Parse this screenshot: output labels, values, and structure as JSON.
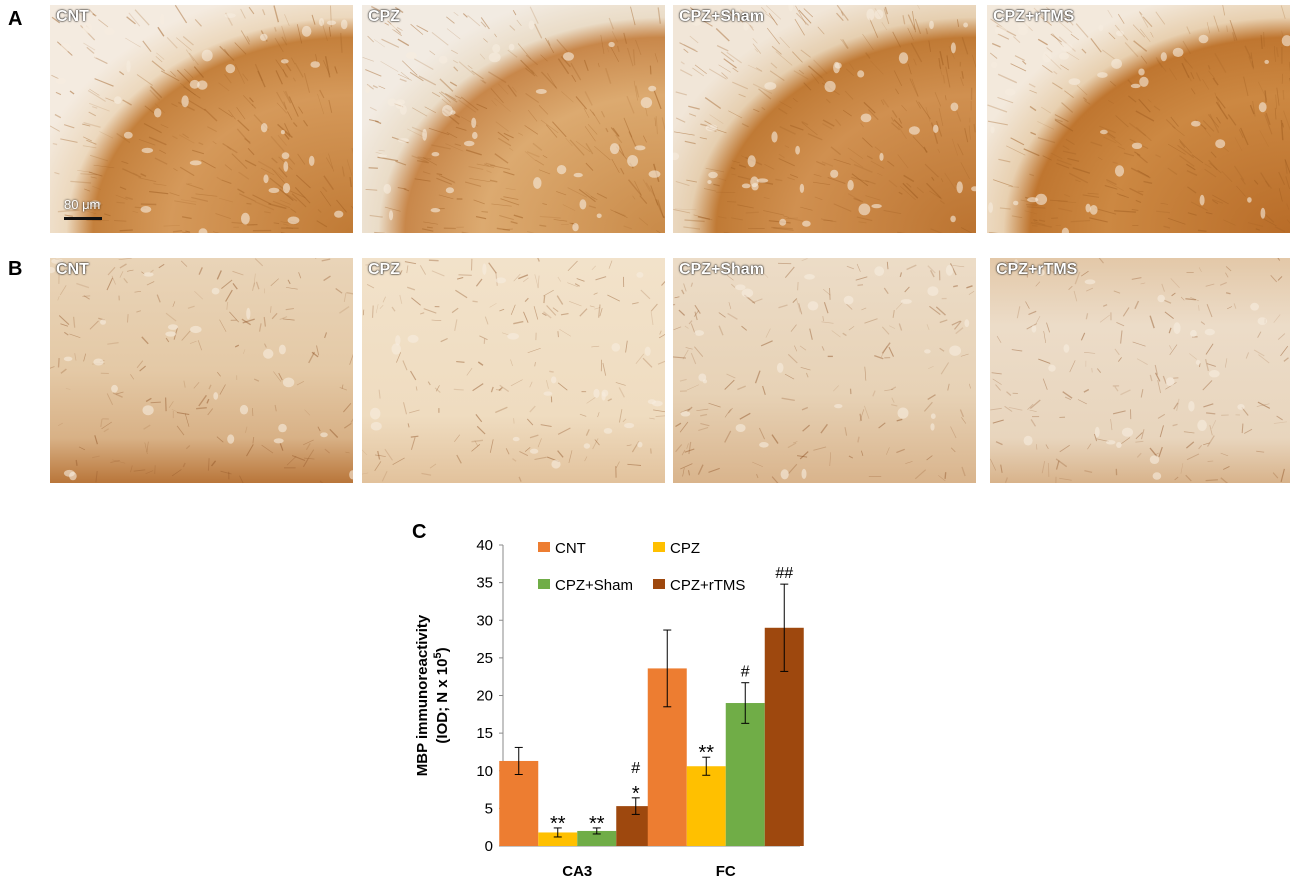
{
  "panels": {
    "a_letter": "A",
    "b_letter": "B",
    "c_letter": "C"
  },
  "row_a": [
    {
      "label": "CNT"
    },
    {
      "label": "CPZ"
    },
    {
      "label": "CPZ+Sham"
    },
    {
      "label": "CPZ+rTMS"
    }
  ],
  "row_b": [
    {
      "label": "CNT"
    },
    {
      "label": "CPZ"
    },
    {
      "label": "CPZ+Sham"
    },
    {
      "label": "CPZ+rTMS"
    }
  ],
  "scale_bar": "80 μm",
  "colors": {
    "stain_dark": "#b8722e",
    "stain_light": "#f1dfc6",
    "CNT": "#ed7d31",
    "CPZ": "#ffc000",
    "CPZ+Sham": "#70ad47",
    "CPZ+rTMS": "#9e480e"
  },
  "chart_data": {
    "type": "bar",
    "ylabel_line1": "MBP immunoreactivity",
    "ylabel_line2_prefix": "(IOD; N x 10",
    "ylabel_line2_sup": "5",
    "ylabel_line2_suffix": ")",
    "ylim": [
      0,
      40
    ],
    "yticks": [
      0,
      5,
      10,
      15,
      20,
      25,
      30,
      35,
      40
    ],
    "categories": [
      "CA3",
      "FC"
    ],
    "legend_placement": "top",
    "series": [
      {
        "name": "CNT",
        "color": "#ed7d31",
        "values": [
          11.3,
          23.6
        ],
        "errors": [
          1.8,
          5.1
        ],
        "annotations": [
          "",
          ""
        ]
      },
      {
        "name": "CPZ",
        "color": "#ffc000",
        "values": [
          1.8,
          10.6
        ],
        "errors": [
          0.6,
          1.2
        ],
        "annotations": [
          "**",
          "**"
        ]
      },
      {
        "name": "CPZ+Sham",
        "color": "#70ad47",
        "values": [
          2.0,
          19.0
        ],
        "errors": [
          0.4,
          2.7
        ],
        "annotations": [
          "**",
          "#"
        ]
      },
      {
        "name": "CPZ+rTMS",
        "color": "#9e480e",
        "values": [
          5.3,
          29.0
        ],
        "errors": [
          1.1,
          5.8
        ],
        "annotations": [
          "#\n*",
          "##"
        ]
      }
    ]
  }
}
